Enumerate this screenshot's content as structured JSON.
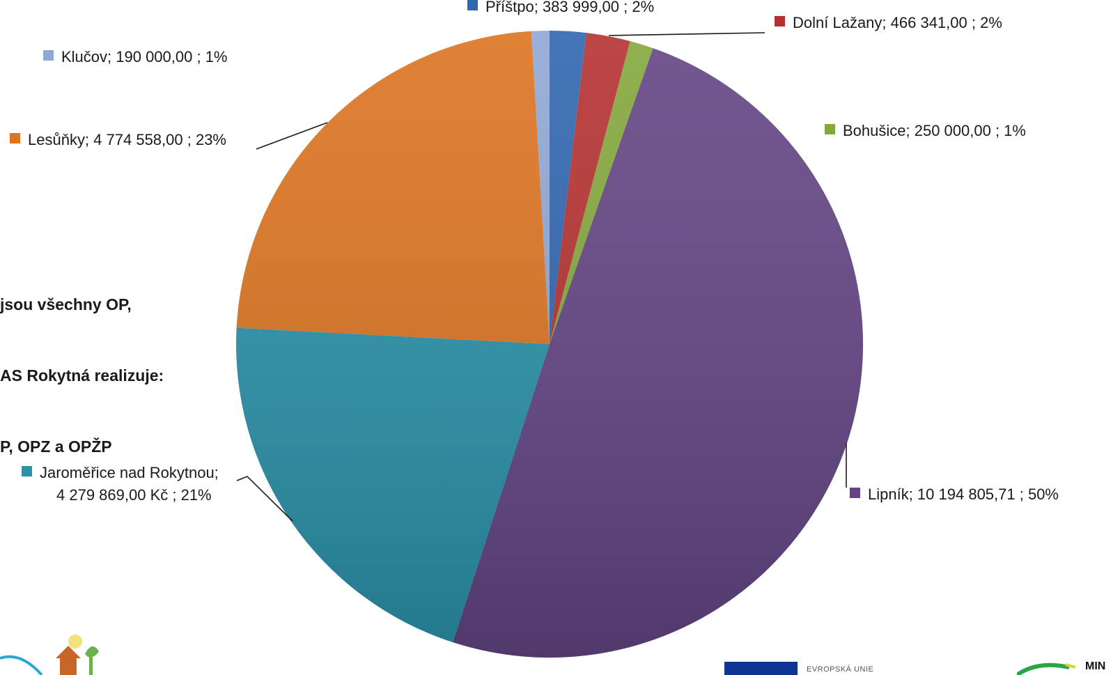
{
  "chart_data": {
    "type": "pie",
    "start": "top",
    "direction": "clockwise",
    "slices": [
      {
        "name": "Příštpo",
        "value_label": "383 999,00",
        "value": 383999.0,
        "percent_label": "2%",
        "color": "#2f66b0"
      },
      {
        "name": "Dolní Lažany",
        "value_label": "466 341,00",
        "value": 466341.0,
        "percent_label": "2%",
        "color": "#b53131"
      },
      {
        "name": "Bohušice",
        "value_label": "250 000,00",
        "value": 250000.0,
        "percent_label": "1%",
        "color": "#84a83c"
      },
      {
        "name": "Lipník",
        "value_label": "10 194 805,71",
        "value": 10194805.71,
        "percent_label": "50%",
        "color": "#634584"
      },
      {
        "name": "Jaroměřice nad Rokytnou",
        "value_label": "4 279 869,00 Kč",
        "value": 4279869.0,
        "percent_label": "21%",
        "color": "#2a93ab"
      },
      {
        "name": "Lesůňky",
        "value_label": "4 774 558,00",
        "value": 4774558.0,
        "percent_label": "23%",
        "color": "#dc7420"
      },
      {
        "name": "Klučov",
        "value_label": "190 000,00",
        "value": 190000.0,
        "percent_label": "1%",
        "color": "#8fa8d6"
      }
    ]
  },
  "note": {
    "lines": [
      "jsou všechny OP,",
      "AS Rokytná realizuje:",
      "P, OPZ a OPŽP"
    ]
  },
  "footer": {
    "eu_text": "EVROPSKÁ UNIE",
    "ministry_text": "MIN"
  }
}
